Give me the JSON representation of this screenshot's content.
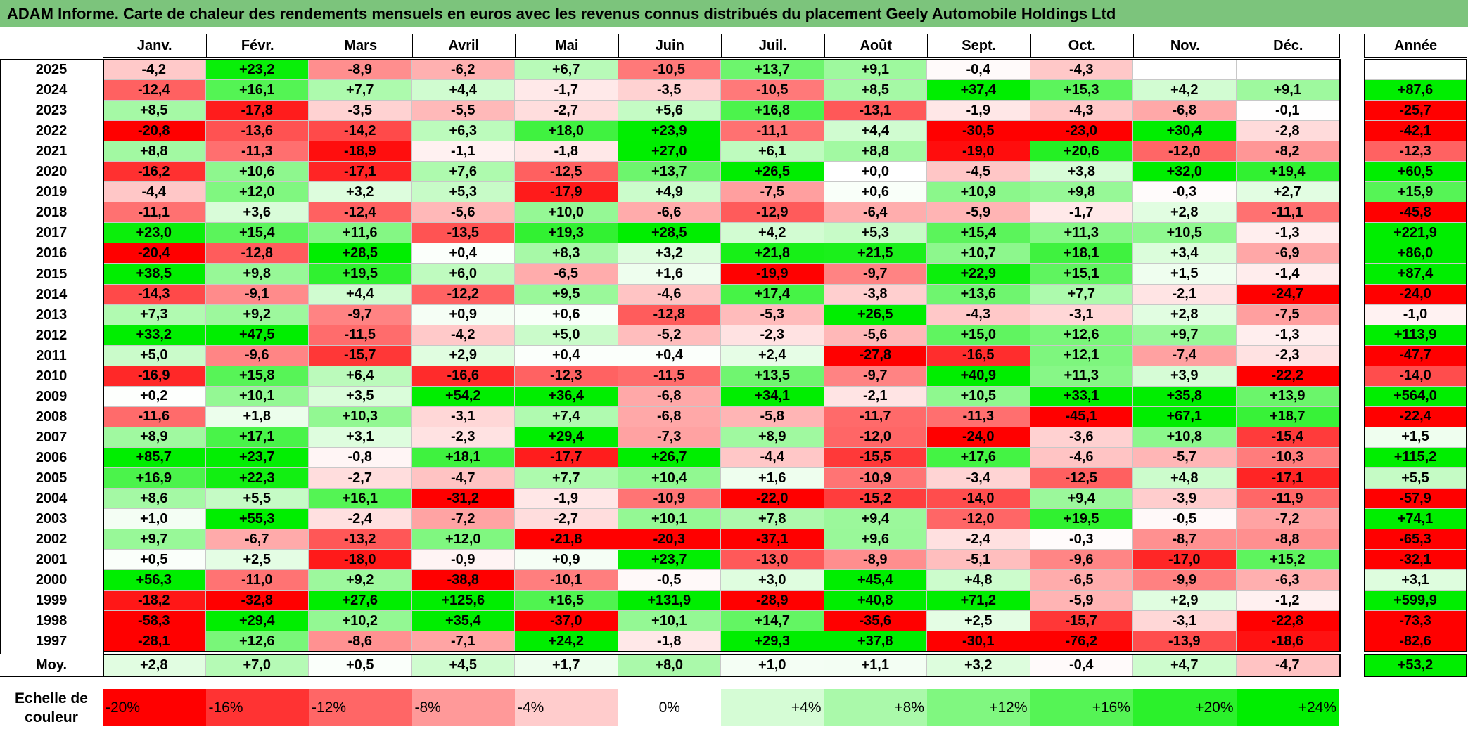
{
  "title": "ADAM Informe. Carte de chaleur des rendements mensuels en euros avec les revenus connus distribués du placement Geely Automobile Holdings Ltd",
  "chart_data": {
    "type": "heatmap",
    "months": [
      "Janv.",
      "Févr.",
      "Mars",
      "Avril",
      "Mai",
      "Juin",
      "Juil.",
      "Août",
      "Sept.",
      "Oct.",
      "Nov.",
      "Déc."
    ],
    "year_header": "Année",
    "rows": [
      {
        "year": "2025",
        "values": [
          "-4,2",
          "+23,2",
          "-8,9",
          "-6,2",
          "+6,7",
          "-10,5",
          "+13,7",
          "+9,1",
          "-0,4",
          "-4,3",
          "",
          ""
        ],
        "annual": ""
      },
      {
        "year": "2024",
        "values": [
          "-12,4",
          "+16,1",
          "+7,7",
          "+4,4",
          "-1,7",
          "-3,5",
          "-10,5",
          "+8,5",
          "+37,4",
          "+15,3",
          "+4,2",
          "+9,1"
        ],
        "annual": "+87,6"
      },
      {
        "year": "2023",
        "values": [
          "+8,5",
          "-17,8",
          "-3,5",
          "-5,5",
          "-2,7",
          "+5,6",
          "+16,8",
          "-13,1",
          "-1,9",
          "-4,3",
          "-6,8",
          "-0,1"
        ],
        "annual": "-25,7"
      },
      {
        "year": "2022",
        "values": [
          "-20,8",
          "-13,6",
          "-14,2",
          "+6,3",
          "+18,0",
          "+23,9",
          "-11,1",
          "+4,4",
          "-30,5",
          "-23,0",
          "+30,4",
          "-2,8"
        ],
        "annual": "-42,1"
      },
      {
        "year": "2021",
        "values": [
          "+8,8",
          "-11,3",
          "-18,9",
          "-1,1",
          "-1,8",
          "+27,0",
          "+6,1",
          "+8,8",
          "-19,0",
          "+20,6",
          "-12,0",
          "-8,2"
        ],
        "annual": "-12,3"
      },
      {
        "year": "2020",
        "values": [
          "-16,2",
          "+10,6",
          "-17,1",
          "+7,6",
          "-12,5",
          "+13,7",
          "+26,5",
          "+0,0",
          "-4,5",
          "+3,8",
          "+32,0",
          "+19,4"
        ],
        "annual": "+60,5"
      },
      {
        "year": "2019",
        "values": [
          "-4,4",
          "+12,0",
          "+3,2",
          "+5,3",
          "-17,9",
          "+4,9",
          "-7,5",
          "+0,6",
          "+10,9",
          "+9,8",
          "-0,3",
          "+2,7"
        ],
        "annual": "+15,9"
      },
      {
        "year": "2018",
        "values": [
          "-11,1",
          "+3,6",
          "-12,4",
          "-5,6",
          "+10,0",
          "-6,6",
          "-12,9",
          "-6,4",
          "-5,9",
          "-1,7",
          "+2,8",
          "-11,1"
        ],
        "annual": "-45,8"
      },
      {
        "year": "2017",
        "values": [
          "+23,0",
          "+15,4",
          "+11,6",
          "-13,5",
          "+19,3",
          "+28,5",
          "+4,2",
          "+5,3",
          "+15,4",
          "+11,3",
          "+10,5",
          "-1,3"
        ],
        "annual": "+221,9"
      },
      {
        "year": "2016",
        "values": [
          "-20,4",
          "-12,8",
          "+28,5",
          "+0,4",
          "+8,3",
          "+3,2",
          "+21,8",
          "+21,5",
          "+10,7",
          "+18,1",
          "+3,4",
          "-6,9"
        ],
        "annual": "+86,0"
      },
      {
        "year": "2015",
        "values": [
          "+38,5",
          "+9,8",
          "+19,5",
          "+6,0",
          "-6,5",
          "+1,6",
          "-19,9",
          "-9,7",
          "+22,9",
          "+15,1",
          "+1,5",
          "-1,4"
        ],
        "annual": "+87,4"
      },
      {
        "year": "2014",
        "values": [
          "-14,3",
          "-9,1",
          "+4,4",
          "-12,2",
          "+9,5",
          "-4,6",
          "+17,4",
          "-3,8",
          "+13,6",
          "+7,7",
          "-2,1",
          "-24,7"
        ],
        "annual": "-24,0"
      },
      {
        "year": "2013",
        "values": [
          "+7,3",
          "+9,2",
          "-9,7",
          "+0,9",
          "+0,6",
          "-12,8",
          "-5,3",
          "+26,5",
          "-4,3",
          "-3,1",
          "+2,8",
          "-7,5"
        ],
        "annual": "-1,0"
      },
      {
        "year": "2012",
        "values": [
          "+33,2",
          "+47,5",
          "-11,5",
          "-4,2",
          "+5,0",
          "-5,2",
          "-2,3",
          "-5,6",
          "+15,0",
          "+12,6",
          "+9,7",
          "-1,3"
        ],
        "annual": "+113,9"
      },
      {
        "year": "2011",
        "values": [
          "+5,0",
          "-9,6",
          "-15,7",
          "+2,9",
          "+0,4",
          "+0,4",
          "+2,4",
          "-27,8",
          "-16,5",
          "+12,1",
          "-7,4",
          "-2,3"
        ],
        "annual": "-47,7"
      },
      {
        "year": "2010",
        "values": [
          "-16,9",
          "+15,8",
          "+6,4",
          "-16,6",
          "-12,3",
          "-11,5",
          "+13,5",
          "-9,7",
          "+40,9",
          "+11,3",
          "+3,9",
          "-22,2"
        ],
        "annual": "-14,0"
      },
      {
        "year": "2009",
        "values": [
          "+0,2",
          "+10,1",
          "+3,5",
          "+54,2",
          "+36,4",
          "-6,8",
          "+34,1",
          "-2,1",
          "+10,5",
          "+33,1",
          "+35,8",
          "+13,9"
        ],
        "annual": "+564,0"
      },
      {
        "year": "2008",
        "values": [
          "-11,6",
          "+1,8",
          "+10,3",
          "-3,1",
          "+7,4",
          "-6,8",
          "-5,8",
          "-11,7",
          "-11,3",
          "-45,1",
          "+67,1",
          "+18,7"
        ],
        "annual": "-22,4"
      },
      {
        "year": "2007",
        "values": [
          "+8,9",
          "+17,1",
          "+3,1",
          "-2,3",
          "+29,4",
          "-7,3",
          "+8,9",
          "-12,0",
          "-24,0",
          "-3,6",
          "+10,8",
          "-15,4"
        ],
        "annual": "+1,5"
      },
      {
        "year": "2006",
        "values": [
          "+85,7",
          "+23,7",
          "-0,8",
          "+18,1",
          "-17,7",
          "+26,7",
          "-4,4",
          "-15,5",
          "+17,6",
          "-4,6",
          "-5,7",
          "-10,3"
        ],
        "annual": "+115,2"
      },
      {
        "year": "2005",
        "values": [
          "+16,9",
          "+22,3",
          "-2,7",
          "-4,7",
          "+7,7",
          "+10,4",
          "+1,6",
          "-10,9",
          "-3,4",
          "-12,5",
          "+4,8",
          "-17,1"
        ],
        "annual": "+5,5"
      },
      {
        "year": "2004",
        "values": [
          "+8,6",
          "+5,5",
          "+16,1",
          "-31,2",
          "-1,9",
          "-10,9",
          "-22,0",
          "-15,2",
          "-14,0",
          "+9,4",
          "-3,9",
          "-11,9"
        ],
        "annual": "-57,9"
      },
      {
        "year": "2003",
        "values": [
          "+1,0",
          "+55,3",
          "-2,4",
          "-7,2",
          "-2,7",
          "+10,1",
          "+7,8",
          "+9,4",
          "-12,0",
          "+19,5",
          "-0,5",
          "-7,2"
        ],
        "annual": "+74,1"
      },
      {
        "year": "2002",
        "values": [
          "+9,7",
          "-6,7",
          "-13,2",
          "+12,0",
          "-21,8",
          "-20,3",
          "-37,1",
          "+9,6",
          "-2,4",
          "-0,3",
          "-8,7",
          "-8,8"
        ],
        "annual": "-65,3"
      },
      {
        "year": "2001",
        "values": [
          "+0,5",
          "+2,5",
          "-18,0",
          "-0,9",
          "+0,9",
          "+23,7",
          "-13,0",
          "-8,9",
          "-5,1",
          "-9,6",
          "-17,0",
          "+15,2"
        ],
        "annual": "-32,1"
      },
      {
        "year": "2000",
        "values": [
          "+56,3",
          "-11,0",
          "+9,2",
          "-38,8",
          "-10,1",
          "-0,5",
          "+3,0",
          "+45,4",
          "+4,8",
          "-6,5",
          "-9,9",
          "-6,3"
        ],
        "annual": "+3,1"
      },
      {
        "year": "1999",
        "values": [
          "-18,2",
          "-32,8",
          "+27,6",
          "+125,6",
          "+16,5",
          "+131,9",
          "-28,9",
          "+40,8",
          "+71,2",
          "-5,9",
          "+2,9",
          "-1,2"
        ],
        "annual": "+599,9"
      },
      {
        "year": "1998",
        "values": [
          "-58,3",
          "+29,4",
          "+10,2",
          "+35,4",
          "-37,0",
          "+10,1",
          "+14,7",
          "-35,6",
          "+2,5",
          "-15,7",
          "-3,1",
          "-22,8"
        ],
        "annual": "-73,3"
      },
      {
        "year": "1997",
        "values": [
          "-28,1",
          "+12,6",
          "-8,6",
          "-7,1",
          "+24,2",
          "-1,8",
          "+29,3",
          "+37,8",
          "-30,1",
          "-76,2",
          "-13,9",
          "-18,6"
        ],
        "annual": "-82,6"
      }
    ],
    "average": {
      "label": "Moy.",
      "values": [
        "+2,8",
        "+7,0",
        "+0,5",
        "+4,5",
        "+1,7",
        "+8,0",
        "+1,0",
        "+1,1",
        "+3,2",
        "-0,4",
        "+4,7",
        "-4,7"
      ],
      "annual": "+53,2"
    },
    "scale": {
      "label": "Echelle de couleur",
      "steps": [
        "-20%",
        "-16%",
        "-12%",
        "-8%",
        "-4%",
        "0%",
        "+4%",
        "+8%",
        "+12%",
        "+16%",
        "+20%",
        "+24%"
      ]
    }
  },
  "colors": {
    "title_bg": "#7cc47c",
    "neg_max": "#ff0000",
    "neutral": "#ffffff",
    "pos_max": "#00ee00"
  }
}
